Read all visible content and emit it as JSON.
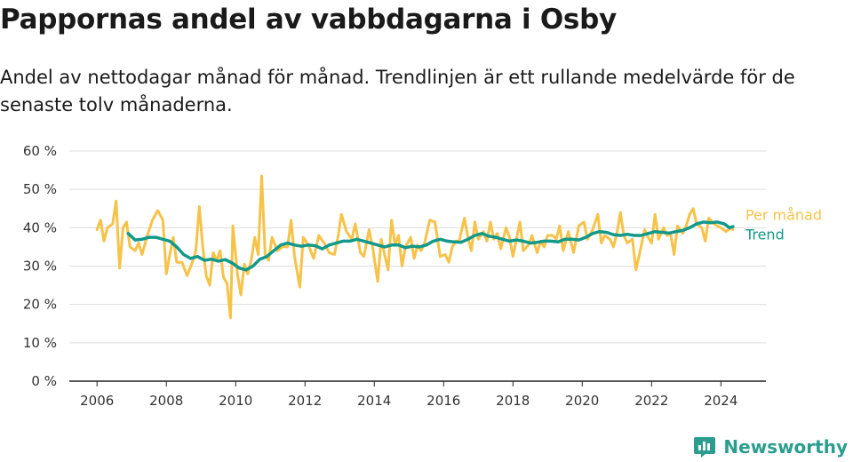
{
  "title": "Pappornas andel av vabbdagarna i Osby",
  "subtitle": "Andel av nettodagar månad för månad. Trendlinjen är ett rullande medelvärde för de senaste tolv månaderna.",
  "brand": {
    "name": "Newsworthy",
    "icon": "newsworthy-logo-icon",
    "color": "#2a9d8f"
  },
  "chart_data": {
    "type": "line",
    "ylabel": "",
    "xlabel": "",
    "ylim": [
      0,
      60
    ],
    "xlim": [
      2005.2,
      2025.3
    ],
    "grid": true,
    "legend_placement": "right-end-of-lines",
    "y_ticks": [
      0,
      10,
      20,
      30,
      40,
      50,
      60
    ],
    "y_tick_labels": [
      "0 %",
      "10 %",
      "20 %",
      "30 %",
      "40 %",
      "50 %",
      "60 %"
    ],
    "x_ticks": [
      2006,
      2008,
      2010,
      2012,
      2014,
      2016,
      2018,
      2020,
      2022,
      2024
    ],
    "x_tick_labels": [
      "2006",
      "2008",
      "2010",
      "2012",
      "2014",
      "2016",
      "2018",
      "2020",
      "2022",
      "2024"
    ],
    "series": [
      {
        "name": "Per månad",
        "color": "#f7c248",
        "points": [
          [
            2006.0,
            39.5
          ],
          [
            2006.1,
            42
          ],
          [
            2006.2,
            36.5
          ],
          [
            2006.3,
            40
          ],
          [
            2006.45,
            41
          ],
          [
            2006.55,
            47
          ],
          [
            2006.65,
            29.5
          ],
          [
            2006.75,
            40
          ],
          [
            2006.85,
            41.5
          ],
          [
            2006.95,
            35
          ],
          [
            2007.1,
            34
          ],
          [
            2007.2,
            36
          ],
          [
            2007.3,
            33
          ],
          [
            2007.45,
            38
          ],
          [
            2007.6,
            42
          ],
          [
            2007.75,
            44.5
          ],
          [
            2007.9,
            42
          ],
          [
            2008.0,
            28
          ],
          [
            2008.1,
            33
          ],
          [
            2008.2,
            37.5
          ],
          [
            2008.3,
            31
          ],
          [
            2008.45,
            31
          ],
          [
            2008.6,
            27.5
          ],
          [
            2008.75,
            31
          ],
          [
            2008.85,
            34
          ],
          [
            2008.95,
            45.5
          ],
          [
            2009.05,
            35
          ],
          [
            2009.15,
            27.5
          ],
          [
            2009.25,
            25
          ],
          [
            2009.35,
            33.5
          ],
          [
            2009.45,
            31.5
          ],
          [
            2009.55,
            34
          ],
          [
            2009.65,
            27
          ],
          [
            2009.75,
            25.5
          ],
          [
            2009.85,
            16.5
          ],
          [
            2009.92,
            40.5
          ],
          [
            2010.05,
            28
          ],
          [
            2010.15,
            22.5
          ],
          [
            2010.25,
            30.5
          ],
          [
            2010.35,
            28
          ],
          [
            2010.45,
            31.5
          ],
          [
            2010.55,
            37.5
          ],
          [
            2010.65,
            33
          ],
          [
            2010.75,
            53.5
          ],
          [
            2010.85,
            33
          ],
          [
            2010.95,
            31.5
          ],
          [
            2011.05,
            37.5
          ],
          [
            2011.2,
            34
          ],
          [
            2011.35,
            35
          ],
          [
            2011.5,
            35
          ],
          [
            2011.6,
            42
          ],
          [
            2011.7,
            32.5
          ],
          [
            2011.85,
            24.5
          ],
          [
            2011.95,
            37.5
          ],
          [
            2012.1,
            35.5
          ],
          [
            2012.25,
            32
          ],
          [
            2012.4,
            38
          ],
          [
            2012.55,
            36
          ],
          [
            2012.7,
            33.5
          ],
          [
            2012.85,
            33
          ],
          [
            2012.95,
            37.5
          ],
          [
            2013.05,
            43.5
          ],
          [
            2013.2,
            39
          ],
          [
            2013.35,
            37
          ],
          [
            2013.45,
            41
          ],
          [
            2013.6,
            33.5
          ],
          [
            2013.7,
            32.5
          ],
          [
            2013.85,
            39.5
          ],
          [
            2013.95,
            35
          ],
          [
            2014.1,
            26
          ],
          [
            2014.2,
            37
          ],
          [
            2014.3,
            33
          ],
          [
            2014.4,
            29
          ],
          [
            2014.5,
            42
          ],
          [
            2014.6,
            35.5
          ],
          [
            2014.7,
            38
          ],
          [
            2014.8,
            30
          ],
          [
            2014.9,
            35
          ],
          [
            2015.05,
            37.5
          ],
          [
            2015.15,
            32
          ],
          [
            2015.25,
            35.5
          ],
          [
            2015.35,
            34
          ],
          [
            2015.45,
            36
          ],
          [
            2015.6,
            42
          ],
          [
            2015.75,
            41.5
          ],
          [
            2015.9,
            32.5
          ],
          [
            2016.05,
            33
          ],
          [
            2016.15,
            31
          ],
          [
            2016.25,
            35
          ],
          [
            2016.35,
            36.5
          ],
          [
            2016.45,
            36.5
          ],
          [
            2016.6,
            42.5
          ],
          [
            2016.7,
            37.5
          ],
          [
            2016.8,
            34
          ],
          [
            2016.9,
            41.5
          ],
          [
            2017.0,
            37
          ],
          [
            2017.15,
            39
          ],
          [
            2017.25,
            36.5
          ],
          [
            2017.35,
            41.5
          ],
          [
            2017.45,
            37
          ],
          [
            2017.55,
            38.5
          ],
          [
            2017.65,
            34.5
          ],
          [
            2017.8,
            40
          ],
          [
            2017.9,
            37.5
          ],
          [
            2018.0,
            32.5
          ],
          [
            2018.1,
            37
          ],
          [
            2018.2,
            41.5
          ],
          [
            2018.3,
            34
          ],
          [
            2018.45,
            35.5
          ],
          [
            2018.55,
            38
          ],
          [
            2018.7,
            33.5
          ],
          [
            2018.8,
            36.5
          ],
          [
            2018.9,
            35
          ],
          [
            2019.0,
            38
          ],
          [
            2019.15,
            38
          ],
          [
            2019.25,
            37
          ],
          [
            2019.35,
            40.5
          ],
          [
            2019.45,
            34
          ],
          [
            2019.6,
            39
          ],
          [
            2019.75,
            33.5
          ],
          [
            2019.9,
            40.5
          ],
          [
            2020.05,
            41.5
          ],
          [
            2020.15,
            37
          ],
          [
            2020.3,
            39.5
          ],
          [
            2020.45,
            43.5
          ],
          [
            2020.55,
            36
          ],
          [
            2020.65,
            38
          ],
          [
            2020.8,
            37
          ],
          [
            2020.9,
            35
          ],
          [
            2021.0,
            38.5
          ],
          [
            2021.1,
            44
          ],
          [
            2021.2,
            38
          ],
          [
            2021.3,
            36
          ],
          [
            2021.45,
            37
          ],
          [
            2021.55,
            29
          ],
          [
            2021.65,
            33
          ],
          [
            2021.8,
            39.5
          ],
          [
            2021.9,
            37.5
          ],
          [
            2022.0,
            36
          ],
          [
            2022.1,
            43.5
          ],
          [
            2022.2,
            37
          ],
          [
            2022.35,
            40
          ],
          [
            2022.45,
            38
          ],
          [
            2022.55,
            38.5
          ],
          [
            2022.65,
            33
          ],
          [
            2022.75,
            40.5
          ],
          [
            2022.9,
            38.5
          ],
          [
            2023.0,
            40.5
          ],
          [
            2023.1,
            43.5
          ],
          [
            2023.2,
            45
          ],
          [
            2023.3,
            41
          ],
          [
            2023.45,
            40
          ],
          [
            2023.55,
            36.5
          ],
          [
            2023.65,
            42.5
          ],
          [
            2023.8,
            41
          ],
          [
            2023.9,
            40.5
          ],
          [
            2024.0,
            40
          ],
          [
            2024.15,
            39
          ],
          [
            2024.3,
            40
          ],
          [
            2024.35,
            39.5
          ]
        ]
      },
      {
        "name": "Trend",
        "color": "#12998a",
        "points": [
          [
            2006.9,
            38.5
          ],
          [
            2007.1,
            36.8
          ],
          [
            2007.3,
            37
          ],
          [
            2007.5,
            37.5
          ],
          [
            2007.7,
            37.5
          ],
          [
            2007.9,
            37
          ],
          [
            2008.1,
            36.5
          ],
          [
            2008.3,
            35
          ],
          [
            2008.5,
            33
          ],
          [
            2008.7,
            32
          ],
          [
            2008.9,
            32.5
          ],
          [
            2009.1,
            31.5
          ],
          [
            2009.3,
            31.8
          ],
          [
            2009.5,
            31.3
          ],
          [
            2009.7,
            31.7
          ],
          [
            2009.9,
            30.8
          ],
          [
            2010.1,
            29.5
          ],
          [
            2010.3,
            29
          ],
          [
            2010.5,
            30
          ],
          [
            2010.7,
            31.8
          ],
          [
            2010.9,
            32.5
          ],
          [
            2011.1,
            34
          ],
          [
            2011.3,
            35.5
          ],
          [
            2011.5,
            36
          ],
          [
            2011.7,
            35.5
          ],
          [
            2011.9,
            35.2
          ],
          [
            2012.1,
            35.5
          ],
          [
            2012.3,
            35.3
          ],
          [
            2012.5,
            34.5
          ],
          [
            2012.7,
            35.5
          ],
          [
            2012.9,
            36
          ],
          [
            2013.1,
            36.5
          ],
          [
            2013.3,
            36.5
          ],
          [
            2013.5,
            37
          ],
          [
            2013.7,
            36.5
          ],
          [
            2013.9,
            36
          ],
          [
            2014.1,
            35.5
          ],
          [
            2014.3,
            35
          ],
          [
            2014.5,
            35.5
          ],
          [
            2014.7,
            35.5
          ],
          [
            2014.9,
            34.8
          ],
          [
            2015.1,
            35.2
          ],
          [
            2015.3,
            35
          ],
          [
            2015.5,
            35.5
          ],
          [
            2015.7,
            36.5
          ],
          [
            2015.9,
            37
          ],
          [
            2016.1,
            36.5
          ],
          [
            2016.3,
            36.3
          ],
          [
            2016.5,
            36.2
          ],
          [
            2016.7,
            37
          ],
          [
            2016.9,
            38
          ],
          [
            2017.1,
            38.5
          ],
          [
            2017.3,
            37.8
          ],
          [
            2017.5,
            37.5
          ],
          [
            2017.7,
            37
          ],
          [
            2017.9,
            36.5
          ],
          [
            2018.1,
            36.8
          ],
          [
            2018.3,
            36.5
          ],
          [
            2018.5,
            36
          ],
          [
            2018.7,
            36.2
          ],
          [
            2018.9,
            36.5
          ],
          [
            2019.1,
            36.5
          ],
          [
            2019.3,
            36.3
          ],
          [
            2019.5,
            37
          ],
          [
            2019.7,
            37
          ],
          [
            2019.9,
            36.8
          ],
          [
            2020.1,
            37.5
          ],
          [
            2020.3,
            38.5
          ],
          [
            2020.5,
            39
          ],
          [
            2020.7,
            38.8
          ],
          [
            2020.9,
            38.2
          ],
          [
            2021.1,
            38
          ],
          [
            2021.3,
            38.3
          ],
          [
            2021.5,
            38
          ],
          [
            2021.7,
            38
          ],
          [
            2021.9,
            38.5
          ],
          [
            2022.1,
            39
          ],
          [
            2022.3,
            38.8
          ],
          [
            2022.5,
            38.6
          ],
          [
            2022.7,
            39
          ],
          [
            2022.9,
            39.3
          ],
          [
            2023.1,
            40
          ],
          [
            2023.3,
            41
          ],
          [
            2023.5,
            41.5
          ],
          [
            2023.7,
            41.3
          ],
          [
            2023.9,
            41.5
          ],
          [
            2024.1,
            41
          ],
          [
            2024.25,
            40
          ],
          [
            2024.35,
            40.3
          ]
        ]
      }
    ]
  }
}
